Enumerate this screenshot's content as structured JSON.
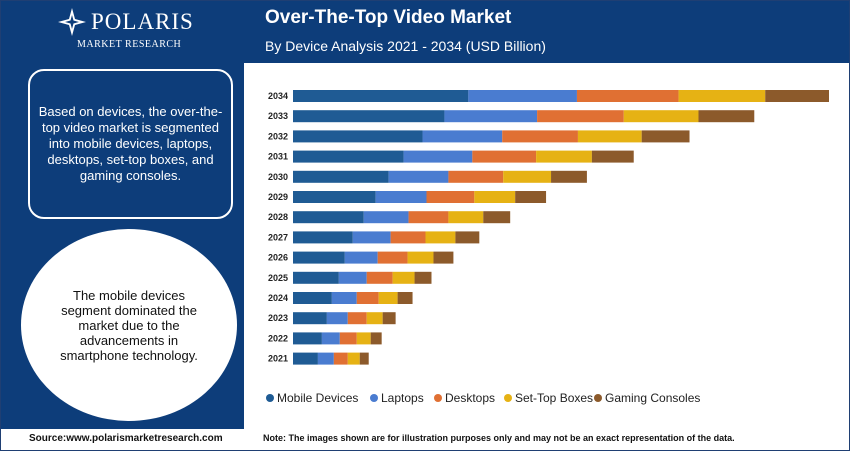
{
  "brand": {
    "name": "POLARIS",
    "tagline": "MARKET RESEARCH"
  },
  "header": {
    "title": "Over-The-Top Video Market",
    "subtitle": "By Device Analysis 2021 - 2034 (USD Billion)"
  },
  "left_panel": {
    "box_text": "Based on devices, the over-the-top video market is segmented into mobile devices, laptops, desktops, set-top boxes, and gaming consoles.",
    "circle_text": "The mobile devices segment dominated the market due to the advancements in smartphone technology."
  },
  "footer": {
    "source": "Source:www.polarismarketresearch.com",
    "note": "Note: The images shown are for illustration purposes only and may not be an exact representation of the data."
  },
  "colors": {
    "header_bg": "#0d3d7a",
    "mobile": "#1f5b94",
    "laptops": "#4a7cd0",
    "desktops": "#e07033",
    "settop": "#e6b214",
    "gaming": "#8c5a2b"
  },
  "chart_data": {
    "type": "bar",
    "orientation": "horizontal",
    "stacked": true,
    "title": "Over-The-Top Video Market",
    "subtitle": "By Device Analysis 2021 - 2034 (USD Billion)",
    "categories": [
      "2034",
      "2033",
      "2032",
      "2031",
      "2030",
      "2029",
      "2028",
      "2027",
      "2026",
      "2025",
      "2024",
      "2023",
      "2022",
      "2021"
    ],
    "series": [
      {
        "name": "Mobile Devices",
        "color": "#1f5b94",
        "values": [
          176,
          152,
          130,
          111,
          96,
          83,
          71,
          60,
          52,
          46,
          39,
          34,
          29,
          25
        ]
      },
      {
        "name": "Laptops",
        "color": "#4a7cd0",
        "values": [
          109,
          93,
          80,
          69,
          60,
          51,
          45,
          38,
          33,
          28,
          25,
          21,
          18,
          16
        ]
      },
      {
        "name": "Desktops",
        "color": "#e07033",
        "values": [
          102,
          87,
          76,
          64,
          55,
          48,
          40,
          35,
          30,
          26,
          22,
          19,
          17,
          14
        ]
      },
      {
        "name": "Set-Top Boxes",
        "color": "#e6b214",
        "values": [
          87,
          75,
          64,
          56,
          48,
          41,
          35,
          30,
          26,
          22,
          19,
          16,
          14,
          12
        ]
      },
      {
        "name": "Gaming Consoles",
        "color": "#8c5a2b",
        "values": [
          64,
          56,
          48,
          42,
          36,
          31,
          27,
          24,
          20,
          17,
          15,
          13,
          11,
          9
        ]
      }
    ],
    "xlabel": "",
    "ylabel": "",
    "xlim": [
      0,
      540
    ],
    "grid": false,
    "legend": "bottom"
  }
}
